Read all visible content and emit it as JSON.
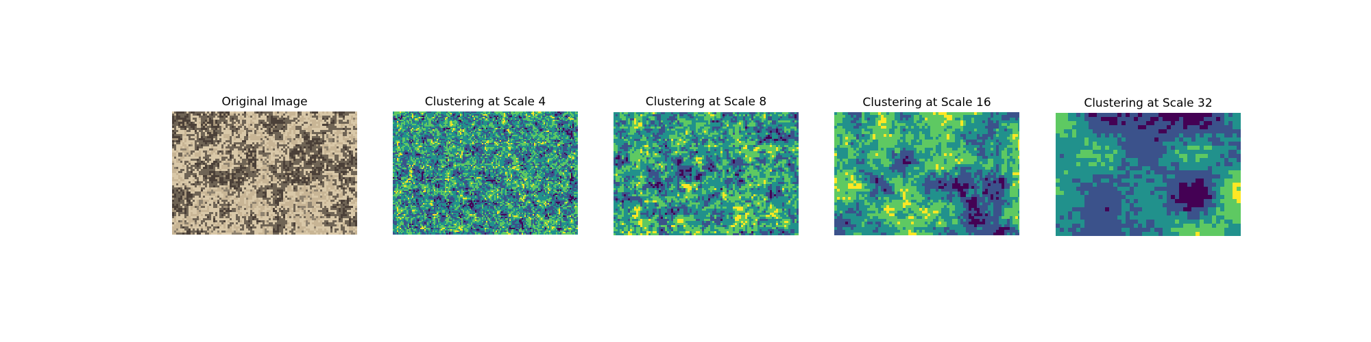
{
  "figure": {
    "panels": [
      {
        "title": "Original Image",
        "kind": "photo"
      },
      {
        "title": "Clustering at Scale 4",
        "kind": "cluster-map",
        "scale": 4
      },
      {
        "title": "Clustering at Scale 8",
        "kind": "cluster-map",
        "scale": 8
      },
      {
        "title": "Clustering at Scale 16",
        "kind": "cluster-map",
        "scale": 16
      },
      {
        "title": "Clustering at Scale 32",
        "kind": "cluster-map",
        "scale": 32
      }
    ],
    "cluster_colors": [
      "#440154",
      "#3b528b",
      "#21918c",
      "#5ec962",
      "#fde725"
    ],
    "photo_colors": [
      "#8e826f",
      "#c8b595",
      "#d9c8a8",
      "#6f6455",
      "#4b4038",
      "#a59479"
    ]
  }
}
